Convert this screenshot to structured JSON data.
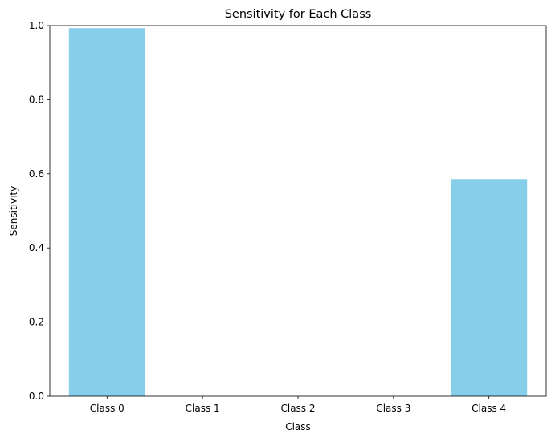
{
  "chart_data": {
    "type": "bar",
    "title": "Sensitivity for Each Class",
    "xlabel": "Class",
    "ylabel": "Sensitivity",
    "categories": [
      "Class 0",
      "Class 1",
      "Class 2",
      "Class 3",
      "Class 4"
    ],
    "values": [
      0.993,
      0.0,
      0.0,
      0.0,
      0.586
    ],
    "ylim": [
      0,
      1.0
    ],
    "yticks": [
      "0.0",
      "0.2",
      "0.4",
      "0.6",
      "0.8",
      "1.0"
    ],
    "grid": false,
    "bar_color": "#87ceeb"
  }
}
